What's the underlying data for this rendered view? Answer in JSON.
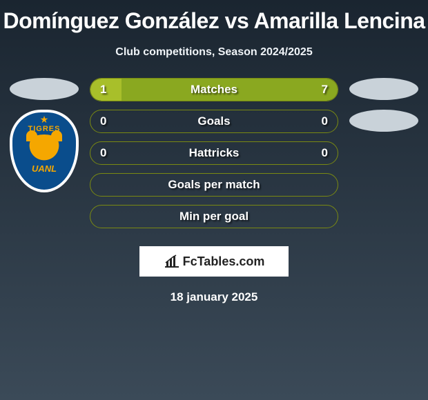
{
  "header": {
    "title": "Domínguez González vs Amarilla Lencina",
    "subtitle": "Club competitions, Season 2024/2025"
  },
  "players": {
    "left": {
      "badge_top": "TIGRES",
      "badge_bottom": "UANL"
    },
    "right": {}
  },
  "stats": {
    "rows": [
      {
        "label": "Matches",
        "left": "1",
        "right": "7",
        "left_pct": 12.5,
        "right_pct": 87.5,
        "show_values": true
      },
      {
        "label": "Goals",
        "left": "0",
        "right": "0",
        "left_pct": 0,
        "right_pct": 0,
        "show_values": true
      },
      {
        "label": "Hattricks",
        "left": "0",
        "right": "0",
        "left_pct": 0,
        "right_pct": 0,
        "show_values": true
      },
      {
        "label": "Goals per match",
        "left": "",
        "right": "",
        "left_pct": 0,
        "right_pct": 0,
        "show_values": false
      },
      {
        "label": "Min per goal",
        "left": "",
        "right": "",
        "left_pct": 0,
        "right_pct": 0,
        "show_values": false
      }
    ],
    "colors": {
      "border": "#7a8a12",
      "fill_left": "#a8bf2a",
      "fill_right": "#8aa820",
      "bar_bg": "rgba(0,0,0,0)"
    }
  },
  "footer": {
    "brand": "FcTables.com",
    "date": "18 january 2025"
  }
}
